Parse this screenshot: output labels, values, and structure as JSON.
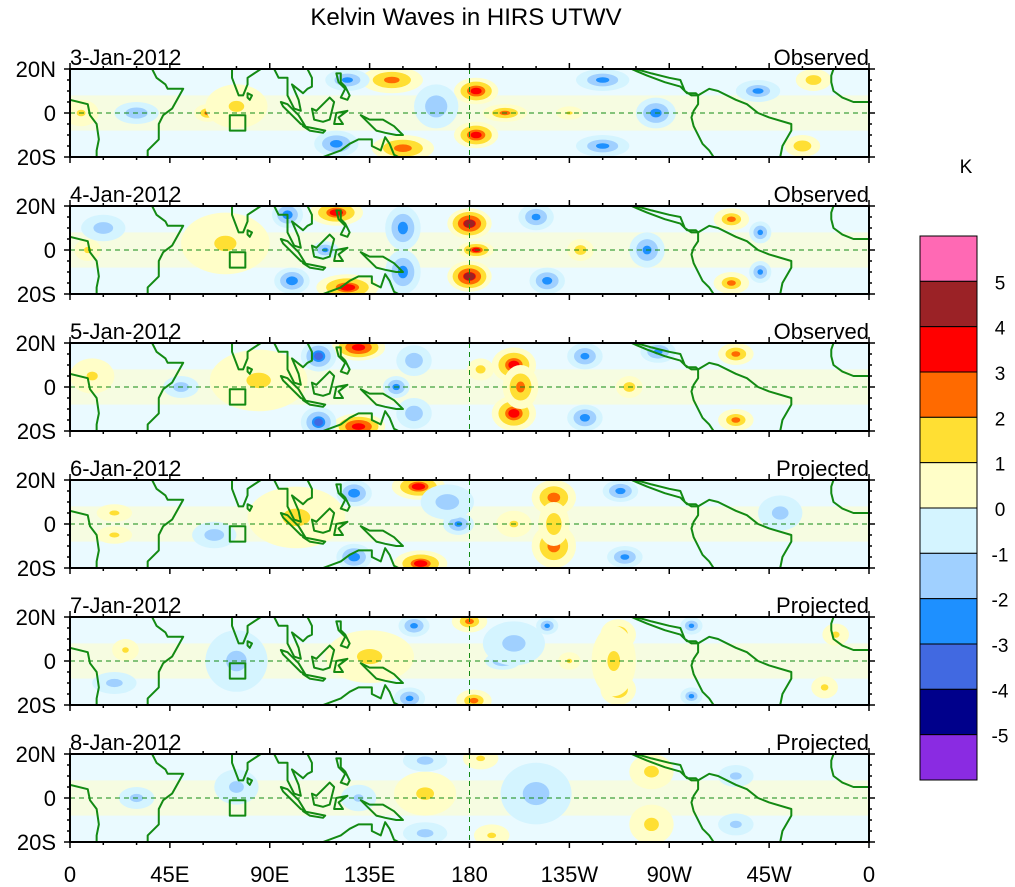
{
  "chart_data": {
    "type": "heatmap",
    "title": "Kelvin Waves in HIRS UTWV",
    "units_label": "K",
    "xlabel": "",
    "ylabel": "",
    "x_range": [
      0,
      360
    ],
    "y_range": [
      -20,
      20
    ],
    "x_ticks": [
      {
        "value": 0,
        "label": "0"
      },
      {
        "value": 45,
        "label": "45E"
      },
      {
        "value": 90,
        "label": "90E"
      },
      {
        "value": 135,
        "label": "135E"
      },
      {
        "value": 180,
        "label": "180"
      },
      {
        "value": 225,
        "label": "135W"
      },
      {
        "value": 270,
        "label": "90W"
      },
      {
        "value": 315,
        "label": "45W"
      },
      {
        "value": 360,
        "label": "0"
      }
    ],
    "y_ticks": [
      {
        "value": 20,
        "label": "20N"
      },
      {
        "value": 0,
        "label": "0"
      },
      {
        "value": -20,
        "label": "20S"
      }
    ],
    "colorbar": {
      "levels": [
        -5,
        -4,
        -3,
        -2,
        -1,
        0,
        1,
        2,
        3,
        4,
        5
      ],
      "labels": [
        "5",
        "4",
        "3",
        "2",
        "1",
        "0",
        "-1",
        "-2",
        "-3",
        "-4",
        "-5"
      ],
      "colors": [
        "#ff69b4",
        "#9b2226",
        "#ff0000",
        "#ff6a00",
        "#ffdf33",
        "#fffec8",
        "#d4f4ff",
        "#a0d0ff",
        "#1e90ff",
        "#4169e1",
        "#00008b",
        "#8a2be2"
      ]
    },
    "land_outline_color": "#138a13",
    "reference_lines": {
      "equator": 0,
      "dateline": 180
    },
    "panels": [
      {
        "date": "3-Jan-2012",
        "status": "Observed",
        "anomalies": [
          {
            "lon": 183,
            "lat": 10,
            "value": 3.4,
            "w": 10,
            "h": 6
          },
          {
            "lon": 183,
            "lat": -10,
            "value": 3.4,
            "w": 10,
            "h": 6
          },
          {
            "lon": 196,
            "lat": 0,
            "value": 2.4,
            "w": 10,
            "h": 4
          },
          {
            "lon": 145,
            "lat": 15,
            "value": 2.6,
            "w": 14,
            "h": 6
          },
          {
            "lon": 150,
            "lat": -16,
            "value": 2.8,
            "w": 14,
            "h": 6
          },
          {
            "lon": 62,
            "lat": 0,
            "value": 2.2,
            "w": 6,
            "h": 4
          },
          {
            "lon": 75,
            "lat": 3,
            "value": 1.2,
            "w": 14,
            "h": 10
          },
          {
            "lon": 5,
            "lat": 0,
            "value": 1.2,
            "w": 8,
            "h": 6
          },
          {
            "lon": 120,
            "lat": -14,
            "value": -2.8,
            "w": 10,
            "h": 6
          },
          {
            "lon": 125,
            "lat": 15,
            "value": -2.4,
            "w": 10,
            "h": 5
          },
          {
            "lon": 165,
            "lat": 3,
            "value": -2.0,
            "w": 10,
            "h": 10
          },
          {
            "lon": 264,
            "lat": 0,
            "value": -2.8,
            "w": 9,
            "h": 7
          },
          {
            "lon": 240,
            "lat": 15,
            "value": -2.4,
            "w": 12,
            "h": 5
          },
          {
            "lon": 240,
            "lat": -15,
            "value": -2.4,
            "w": 12,
            "h": 5
          },
          {
            "lon": 225,
            "lat": 0,
            "value": 1.2,
            "w": 6,
            "h": 3
          },
          {
            "lon": 330,
            "lat": -15,
            "value": 2.0,
            "w": 8,
            "h": 5
          },
          {
            "lon": 335,
            "lat": 15,
            "value": 1.8,
            "w": 8,
            "h": 5
          },
          {
            "lon": 30,
            "lat": 0,
            "value": -2.0,
            "w": 10,
            "h": 5
          },
          {
            "lon": 310,
            "lat": 10,
            "value": -2.2,
            "w": 10,
            "h": 5
          }
        ]
      },
      {
        "date": "4-Jan-2012",
        "status": "Observed",
        "anomalies": [
          {
            "lon": 180,
            "lat": 12,
            "value": 4.2,
            "w": 10,
            "h": 7
          },
          {
            "lon": 180,
            "lat": -12,
            "value": 4.2,
            "w": 10,
            "h": 7
          },
          {
            "lon": 183,
            "lat": 0,
            "value": 3.2,
            "w": 8,
            "h": 4
          },
          {
            "lon": 120,
            "lat": 17,
            "value": 3.2,
            "w": 12,
            "h": 6
          },
          {
            "lon": 125,
            "lat": -17,
            "value": 3.2,
            "w": 14,
            "h": 6
          },
          {
            "lon": 60,
            "lat": 0,
            "value": 2.0,
            "w": 6,
            "h": 5
          },
          {
            "lon": 70,
            "lat": 3,
            "value": 1.2,
            "w": 20,
            "h": 14
          },
          {
            "lon": 98,
            "lat": 16,
            "value": -3.0,
            "w": 7,
            "h": 6
          },
          {
            "lon": 100,
            "lat": -14,
            "value": -3.0,
            "w": 8,
            "h": 6
          },
          {
            "lon": 150,
            "lat": 10,
            "value": -2.8,
            "w": 8,
            "h": 10
          },
          {
            "lon": 150,
            "lat": -10,
            "value": -2.8,
            "w": 8,
            "h": 10
          },
          {
            "lon": 115,
            "lat": 0,
            "value": -2.6,
            "w": 6,
            "h": 4
          },
          {
            "lon": 215,
            "lat": -14,
            "value": -2.8,
            "w": 8,
            "h": 6
          },
          {
            "lon": 210,
            "lat": 15,
            "value": -2.6,
            "w": 8,
            "h": 6
          },
          {
            "lon": 230,
            "lat": 0,
            "value": 1.8,
            "w": 6,
            "h": 5
          },
          {
            "lon": 260,
            "lat": 0,
            "value": -2.6,
            "w": 8,
            "h": 8
          },
          {
            "lon": 298,
            "lat": 14,
            "value": 2.2,
            "w": 8,
            "h": 5
          },
          {
            "lon": 298,
            "lat": -15,
            "value": 2.2,
            "w": 8,
            "h": 5
          },
          {
            "lon": 311,
            "lat": 8,
            "value": -2.6,
            "w": 5,
            "h": 5
          },
          {
            "lon": 311,
            "lat": -10,
            "value": -2.6,
            "w": 5,
            "h": 5
          },
          {
            "lon": 15,
            "lat": 10,
            "value": -1.8,
            "w": 10,
            "h": 6
          },
          {
            "lon": 8,
            "lat": 0,
            "value": 1.4,
            "w": 6,
            "h": 5
          }
        ]
      },
      {
        "date": "5-Jan-2012",
        "status": "Observed",
        "anomalies": [
          {
            "lon": 200,
            "lat": 10,
            "value": 3.3,
            "w": 10,
            "h": 8
          },
          {
            "lon": 200,
            "lat": -12,
            "value": 3.3,
            "w": 10,
            "h": 8
          },
          {
            "lon": 203,
            "lat": 0,
            "value": 2.6,
            "w": 8,
            "h": 10
          },
          {
            "lon": 130,
            "lat": 18,
            "value": 4.0,
            "w": 12,
            "h": 6
          },
          {
            "lon": 130,
            "lat": -18,
            "value": 4.0,
            "w": 12,
            "h": 6
          },
          {
            "lon": 70,
            "lat": 0,
            "value": 2.0,
            "w": 5,
            "h": 4
          },
          {
            "lon": 85,
            "lat": 3,
            "value": 1.3,
            "w": 22,
            "h": 14
          },
          {
            "lon": 112,
            "lat": 14,
            "value": -3.2,
            "w": 8,
            "h": 7
          },
          {
            "lon": 112,
            "lat": -16,
            "value": -3.2,
            "w": 8,
            "h": 7
          },
          {
            "lon": 147,
            "lat": 0,
            "value": -2.8,
            "w": 6,
            "h": 5
          },
          {
            "lon": 155,
            "lat": 12,
            "value": -2.0,
            "w": 8,
            "h": 7
          },
          {
            "lon": 155,
            "lat": -12,
            "value": -2.0,
            "w": 8,
            "h": 7
          },
          {
            "lon": 232,
            "lat": 14,
            "value": -2.6,
            "w": 8,
            "h": 6
          },
          {
            "lon": 232,
            "lat": -14,
            "value": -2.8,
            "w": 8,
            "h": 6
          },
          {
            "lon": 185,
            "lat": 8,
            "value": 1.6,
            "w": 6,
            "h": 5
          },
          {
            "lon": 252,
            "lat": 0,
            "value": 1.8,
            "w": 6,
            "h": 5
          },
          {
            "lon": 265,
            "lat": 16,
            "value": -2.6,
            "w": 8,
            "h": 5
          },
          {
            "lon": 300,
            "lat": 15,
            "value": 2.4,
            "w": 8,
            "h": 5
          },
          {
            "lon": 300,
            "lat": -15,
            "value": 2.2,
            "w": 8,
            "h": 5
          },
          {
            "lon": 50,
            "lat": 0,
            "value": -1.8,
            "w": 8,
            "h": 5
          },
          {
            "lon": 10,
            "lat": 5,
            "value": 1.3,
            "w": 10,
            "h": 8
          }
        ]
      },
      {
        "date": "6-Jan-2012",
        "status": "Projected",
        "anomalies": [
          {
            "lon": 218,
            "lat": 12,
            "value": 2.8,
            "w": 10,
            "h": 8
          },
          {
            "lon": 218,
            "lat": -10,
            "value": 2.8,
            "w": 10,
            "h": 10
          },
          {
            "lon": 218,
            "lat": 0,
            "value": 2.0,
            "w": 7,
            "h": 10
          },
          {
            "lon": 157,
            "lat": 17,
            "value": 3.2,
            "w": 12,
            "h": 6
          },
          {
            "lon": 158,
            "lat": -18,
            "value": 3.2,
            "w": 12,
            "h": 6
          },
          {
            "lon": 102,
            "lat": 3,
            "value": 1.4,
            "w": 22,
            "h": 14
          },
          {
            "lon": 128,
            "lat": 14,
            "value": -3.0,
            "w": 8,
            "h": 6
          },
          {
            "lon": 128,
            "lat": -15,
            "value": -3.0,
            "w": 8,
            "h": 6
          },
          {
            "lon": 175,
            "lat": 0,
            "value": -2.6,
            "w": 7,
            "h": 5
          },
          {
            "lon": 170,
            "lat": 10,
            "value": -1.8,
            "w": 12,
            "h": 8
          },
          {
            "lon": 248,
            "lat": 15,
            "value": -2.8,
            "w": 8,
            "h": 5
          },
          {
            "lon": 250,
            "lat": -15,
            "value": -2.6,
            "w": 8,
            "h": 5
          },
          {
            "lon": 200,
            "lat": 0,
            "value": 1.3,
            "w": 8,
            "h": 6
          },
          {
            "lon": 65,
            "lat": -5,
            "value": -1.8,
            "w": 10,
            "h": 6
          },
          {
            "lon": 20,
            "lat": 5,
            "value": 1.4,
            "w": 8,
            "h": 4
          },
          {
            "lon": 20,
            "lat": -5,
            "value": 1.4,
            "w": 8,
            "h": 4
          },
          {
            "lon": 320,
            "lat": 5,
            "value": -1.6,
            "w": 10,
            "h": 8
          }
        ]
      },
      {
        "date": "7-Jan-2012",
        "status": "Projected",
        "anomalies": [
          {
            "lon": 247,
            "lat": 12,
            "value": 2.2,
            "w": 8,
            "h": 7
          },
          {
            "lon": 247,
            "lat": -13,
            "value": 2.2,
            "w": 8,
            "h": 7
          },
          {
            "lon": 245,
            "lat": 0,
            "value": 1.4,
            "w": 10,
            "h": 16
          },
          {
            "lon": 180,
            "lat": 18,
            "value": 2.2,
            "w": 8,
            "h": 5
          },
          {
            "lon": 182,
            "lat": -18,
            "value": 2.2,
            "w": 8,
            "h": 5
          },
          {
            "lon": 135,
            "lat": 2,
            "value": 1.4,
            "w": 20,
            "h": 12
          },
          {
            "lon": 155,
            "lat": 16,
            "value": -2.6,
            "w": 7,
            "h": 5
          },
          {
            "lon": 153,
            "lat": -17,
            "value": -2.6,
            "w": 7,
            "h": 5
          },
          {
            "lon": 195,
            "lat": 0,
            "value": -2.4,
            "w": 8,
            "h": 4
          },
          {
            "lon": 200,
            "lat": 8,
            "value": -1.6,
            "w": 14,
            "h": 10
          },
          {
            "lon": 215,
            "lat": 16,
            "value": -2.4,
            "w": 5,
            "h": 4
          },
          {
            "lon": 280,
            "lat": 16,
            "value": -2.4,
            "w": 5,
            "h": 4
          },
          {
            "lon": 280,
            "lat": -16,
            "value": -2.2,
            "w": 5,
            "h": 4
          },
          {
            "lon": 225,
            "lat": 0,
            "value": 1.3,
            "w": 5,
            "h": 4
          },
          {
            "lon": 75,
            "lat": 0,
            "value": -1.5,
            "w": 14,
            "h": 14
          },
          {
            "lon": 25,
            "lat": 5,
            "value": 1.3,
            "w": 6,
            "h": 5
          },
          {
            "lon": 20,
            "lat": -10,
            "value": -1.6,
            "w": 10,
            "h": 5
          },
          {
            "lon": 340,
            "lat": -12,
            "value": 1.4,
            "w": 6,
            "h": 5
          },
          {
            "lon": 345,
            "lat": 12,
            "value": 1.4,
            "w": 6,
            "h": 5
          }
        ]
      },
      {
        "date": "8-Jan-2012",
        "status": "Projected",
        "anomalies": [
          {
            "lon": 262,
            "lat": 12,
            "value": 1.5,
            "w": 10,
            "h": 8
          },
          {
            "lon": 262,
            "lat": -12,
            "value": 1.5,
            "w": 10,
            "h": 9
          },
          {
            "lon": 160,
            "lat": 2,
            "value": 1.4,
            "w": 14,
            "h": 10
          },
          {
            "lon": 185,
            "lat": 18,
            "value": 1.3,
            "w": 8,
            "h": 5
          },
          {
            "lon": 190,
            "lat": -17,
            "value": 1.3,
            "w": 8,
            "h": 5
          },
          {
            "lon": 210,
            "lat": 0,
            "value": -2.5,
            "w": 6,
            "h": 3
          },
          {
            "lon": 210,
            "lat": 2,
            "value": -1.6,
            "w": 16,
            "h": 14
          },
          {
            "lon": 160,
            "lat": 17,
            "value": -1.6,
            "w": 10,
            "h": 5
          },
          {
            "lon": 160,
            "lat": -16,
            "value": -1.6,
            "w": 10,
            "h": 5
          },
          {
            "lon": 75,
            "lat": 5,
            "value": -1.5,
            "w": 10,
            "h": 8
          },
          {
            "lon": 30,
            "lat": 0,
            "value": -1.6,
            "w": 8,
            "h": 5
          },
          {
            "lon": 300,
            "lat": 10,
            "value": -1.5,
            "w": 8,
            "h": 5
          },
          {
            "lon": 300,
            "lat": -12,
            "value": -1.5,
            "w": 8,
            "h": 5
          },
          {
            "lon": 130,
            "lat": 0,
            "value": -1.4,
            "w": 8,
            "h": 6
          }
        ]
      }
    ]
  }
}
